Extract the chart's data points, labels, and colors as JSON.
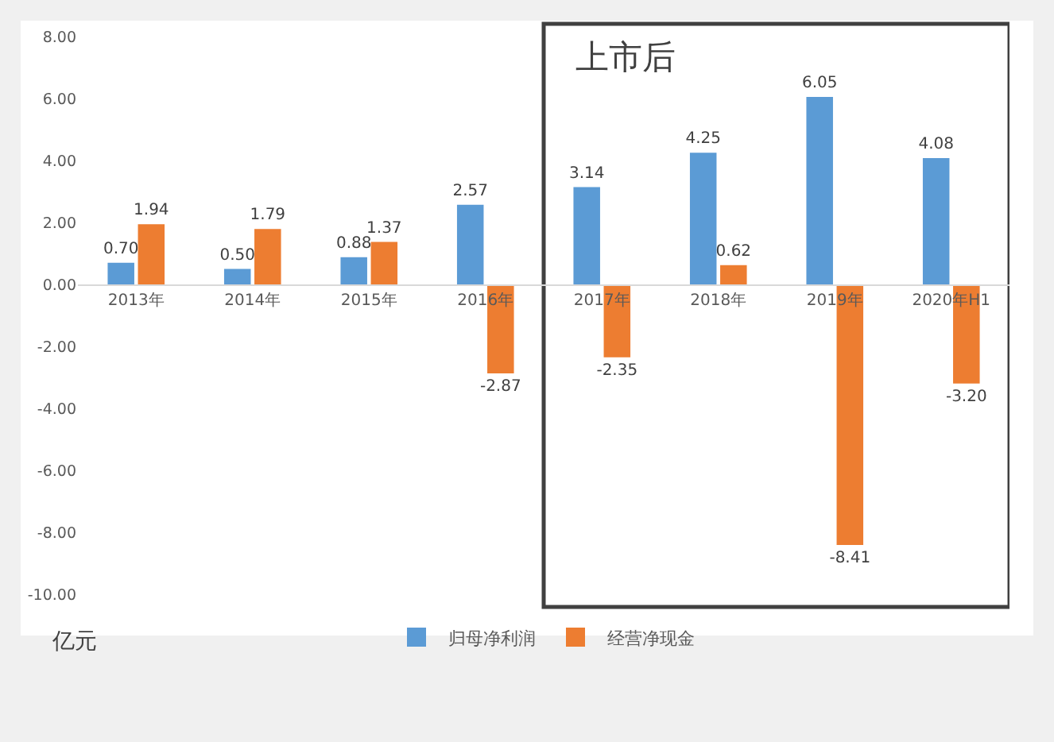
{
  "chart_data": {
    "type": "bar",
    "ylabel": "亿元",
    "categories": [
      "2013年",
      "2014年",
      "2015年",
      "2016年",
      "2017年",
      "2018年",
      "2019年",
      "2020年H1"
    ],
    "series": [
      {
        "name": "归母净利润",
        "color": "#5b9bd5",
        "values": [
          0.7,
          0.5,
          0.88,
          2.57,
          3.14,
          4.25,
          6.05,
          4.08
        ],
        "value_labels": [
          "0.70",
          "0.50",
          "0.88",
          "2.57",
          "3.14",
          "4.25",
          "6.05",
          "4.08"
        ]
      },
      {
        "name": "经营净现金",
        "color": "#ed7d31",
        "values": [
          1.94,
          1.79,
          1.37,
          -2.87,
          -2.35,
          0.62,
          -8.41,
          -3.2
        ],
        "value_labels": [
          "1.94",
          "1.79",
          "1.37",
          "-2.87",
          "-2.35",
          "0.62",
          "-8.41",
          "-3.20"
        ]
      }
    ],
    "ylim": [
      -10,
      8
    ],
    "yticks": [
      {
        "value": -10,
        "label": "-10.00"
      },
      {
        "value": -8,
        "label": "-8.00"
      },
      {
        "value": -6,
        "label": "-6.00"
      },
      {
        "value": -4,
        "label": "-4.00"
      },
      {
        "value": -2,
        "label": "-2.00"
      },
      {
        "value": 0,
        "label": "0.00"
      },
      {
        "value": 2,
        "label": "2.00"
      },
      {
        "value": 4,
        "label": "4.00"
      },
      {
        "value": 6,
        "label": "6.00"
      },
      {
        "value": 8,
        "label": "8.00"
      }
    ],
    "bands": [
      {
        "axis": "x",
        "from": "2017年",
        "to": "2020年H1",
        "label": "上市后",
        "color": "#404040"
      }
    ],
    "legend": "bottom"
  }
}
